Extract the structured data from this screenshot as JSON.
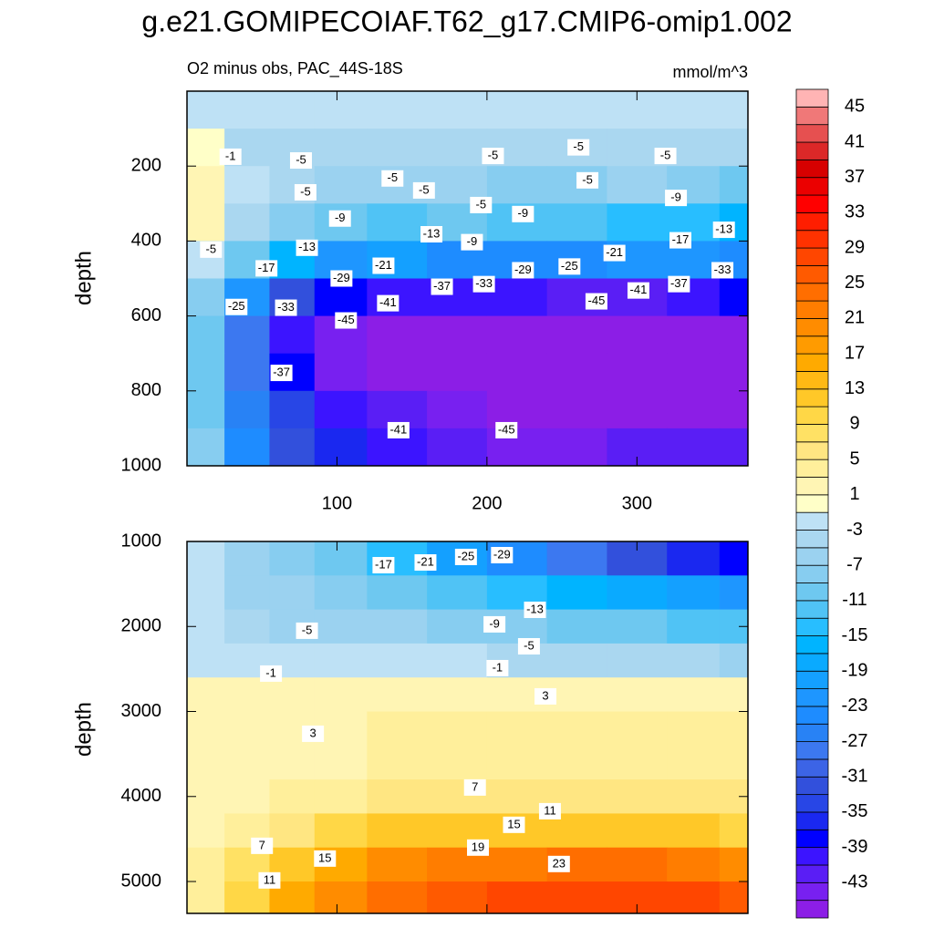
{
  "chart_data": [
    {
      "type": "contour",
      "title": "g.e21.GOMIPECOIAF.T62_g17.CMIP6-omip1.002",
      "subtitle": "O2 minus obs, PAC_44S-18S",
      "units": "mmol/m^3",
      "ylabel": "depth",
      "xlim": [
        0,
        374
      ],
      "xticks": [
        100,
        200,
        300
      ],
      "show_xtick_labels": true,
      "ylim": [
        0,
        1000
      ],
      "yticks": [
        200,
        400,
        600,
        800,
        1000
      ],
      "y_reversed": true,
      "x": [
        10,
        40,
        70,
        100,
        140,
        180,
        220,
        260,
        300,
        340,
        370
      ],
      "y": [
        50,
        150,
        250,
        350,
        450,
        550,
        650,
        750,
        850,
        950
      ],
      "z": [
        [
          -2,
          -3,
          -3,
          -3,
          -3,
          -3,
          -3,
          -3,
          -3,
          -3,
          -3
        ],
        [
          0,
          -4,
          -5,
          -4,
          -5,
          -4,
          -5,
          -5,
          -4,
          -5,
          -4
        ],
        [
          1,
          -3,
          -4,
          -7,
          -6,
          -7,
          -8,
          -8,
          -7,
          -9,
          -10
        ],
        [
          1,
          -5,
          -9,
          -11,
          -13,
          -11,
          -12,
          -13,
          -14,
          -15,
          -16
        ],
        [
          -3,
          -10,
          -17,
          -22,
          -21,
          -24,
          -25,
          -24,
          -22,
          -22,
          -25
        ],
        [
          -8,
          -22,
          -32,
          -38,
          -41,
          -40,
          -40,
          -43,
          -42,
          -40,
          -38
        ],
        [
          -10,
          -28,
          -40,
          -45,
          -47,
          -47,
          -47,
          -47,
          -47,
          -47,
          -47
        ],
        [
          -10,
          -28,
          -38,
          -44,
          -46,
          -47,
          -47,
          -47,
          -47,
          -47,
          -47
        ],
        [
          -10,
          -26,
          -34,
          -40,
          -43,
          -44,
          -46,
          -46,
          -46,
          -46,
          -46
        ],
        [
          -9,
          -24,
          -32,
          -37,
          -40,
          -42,
          -44,
          -45,
          -43,
          -42,
          -43
        ]
      ],
      "contour_labels": [
        {
          "x": 29,
          "y": 175,
          "value": -1
        },
        {
          "x": 76,
          "y": 185,
          "value": -5
        },
        {
          "x": 79,
          "y": 270,
          "value": -5
        },
        {
          "x": 137,
          "y": 233,
          "value": -5
        },
        {
          "x": 158,
          "y": 265,
          "value": -5
        },
        {
          "x": 204,
          "y": 173,
          "value": -5
        },
        {
          "x": 261,
          "y": 150,
          "value": -5
        },
        {
          "x": 267,
          "y": 238,
          "value": -5
        },
        {
          "x": 319,
          "y": 173,
          "value": -5
        },
        {
          "x": 196,
          "y": 304,
          "value": -5
        },
        {
          "x": 102,
          "y": 340,
          "value": -9
        },
        {
          "x": 190,
          "y": 403,
          "value": -9
        },
        {
          "x": 224,
          "y": 328,
          "value": -9
        },
        {
          "x": 326,
          "y": 285,
          "value": -9
        },
        {
          "x": 163,
          "y": 382,
          "value": -13
        },
        {
          "x": 80,
          "y": 418,
          "value": -13
        },
        {
          "x": 358,
          "y": 370,
          "value": -13
        },
        {
          "x": 16,
          "y": 423,
          "value": -5
        },
        {
          "x": 53,
          "y": 473,
          "value": -17
        },
        {
          "x": 329,
          "y": 398,
          "value": -17
        },
        {
          "x": 131,
          "y": 466,
          "value": -21
        },
        {
          "x": 285,
          "y": 432,
          "value": -21
        },
        {
          "x": 103,
          "y": 500,
          "value": -29
        },
        {
          "x": 224,
          "y": 478,
          "value": -29
        },
        {
          "x": 255,
          "y": 468,
          "value": -25
        },
        {
          "x": 170,
          "y": 522,
          "value": -37
        },
        {
          "x": 198,
          "y": 515,
          "value": -33
        },
        {
          "x": 357,
          "y": 478,
          "value": -33
        },
        {
          "x": 328,
          "y": 515,
          "value": -37
        },
        {
          "x": 301,
          "y": 532,
          "value": -41
        },
        {
          "x": 134,
          "y": 566,
          "value": -41
        },
        {
          "x": 273,
          "y": 561,
          "value": -45
        },
        {
          "x": 33,
          "y": 576,
          "value": -25
        },
        {
          "x": 66,
          "y": 578,
          "value": -33
        },
        {
          "x": 106,
          "y": 612,
          "value": -45
        },
        {
          "x": 63,
          "y": 752,
          "value": -37
        },
        {
          "x": 141,
          "y": 905,
          "value": -41
        },
        {
          "x": 213,
          "y": 905,
          "value": -45
        }
      ],
      "colorbar": {
        "levels": [
          -45,
          -43,
          -41,
          -39,
          -37,
          -35,
          -33,
          -31,
          -29,
          -27,
          -25,
          -23,
          -21,
          -19,
          -17,
          -15,
          -13,
          -11,
          -9,
          -7,
          -5,
          -3,
          -1,
          1,
          3,
          5,
          7,
          9,
          11,
          13,
          15,
          17,
          19,
          21,
          23,
          25,
          27,
          29,
          31,
          33,
          35,
          37,
          39,
          41,
          43,
          45
        ],
        "ticks": [
          -43,
          -39,
          -35,
          -31,
          -27,
          -23,
          -19,
          -15,
          -11,
          -7,
          -3,
          1,
          5,
          9,
          13,
          17,
          21,
          25,
          29,
          33,
          37,
          41,
          45
        ],
        "colors": [
          "#8c1ee6",
          "#7820f0",
          "#5a1ef5",
          "#3c14ff",
          "#0000ff",
          "#1a28f0",
          "#2846e6",
          "#3250dc",
          "#3c64e6",
          "#3c78f0",
          "#2882f5",
          "#1e8cff",
          "#1e96ff",
          "#14a0ff",
          "#0aaaff",
          "#00b4ff",
          "#28beff",
          "#50c3f5",
          "#6ec8f0",
          "#87cdf0",
          "#9bd2f0",
          "#aad7f0",
          "#bee1f5",
          "#ffffc8",
          "#fff5b4",
          "#ffef9b",
          "#ffe682",
          "#ffe164",
          "#ffd746",
          "#ffc828",
          "#ffb914",
          "#ffaa00",
          "#ff9b00",
          "#ff8c00",
          "#ff7d00",
          "#ff6e00",
          "#ff5a00",
          "#ff4600",
          "#ff3200",
          "#ff1e00",
          "#ff0000",
          "#eb0000",
          "#d70000",
          "#dc2828",
          "#e65050",
          "#f07878",
          "#ffb4b4"
        ]
      }
    },
    {
      "type": "contour",
      "ylabel": "depth",
      "xlim": [
        0,
        374
      ],
      "xticks": [
        100,
        200,
        300
      ],
      "show_xtick_labels": false,
      "ylim": [
        1000,
        5375
      ],
      "yticks": [
        1000,
        2000,
        3000,
        4000,
        5000
      ],
      "y_reversed": true,
      "x": [
        10,
        40,
        70,
        100,
        140,
        180,
        220,
        260,
        300,
        340,
        370
      ],
      "y": [
        1200,
        1600,
        2000,
        2400,
        2800,
        3200,
        3600,
        4000,
        4400,
        4800,
        5200
      ],
      "z": [
        [
          -3,
          -6,
          -8,
          -11,
          -15,
          -20,
          -25,
          -28,
          -32,
          -36,
          -38
        ],
        [
          -3,
          -6,
          -7,
          -8,
          -10,
          -12,
          -14,
          -16,
          -18,
          -20,
          -22
        ],
        [
          -3,
          -5,
          -6,
          -6,
          -7,
          -8,
          -9,
          -10,
          -11,
          -12,
          -13
        ],
        [
          -2,
          -3,
          -3,
          -3,
          -3,
          -3,
          -4,
          -4,
          -5,
          -5,
          -6
        ],
        [
          1,
          1,
          1,
          1,
          1,
          1,
          1,
          1,
          1,
          1,
          1
        ],
        [
          1,
          2,
          2,
          2,
          3,
          3,
          3,
          3,
          3,
          3,
          3
        ],
        [
          1,
          2,
          2,
          2,
          3,
          4,
          4,
          4,
          4,
          3,
          3
        ],
        [
          1,
          2,
          3,
          4,
          5,
          6,
          6,
          6,
          6,
          5,
          5
        ],
        [
          2,
          4,
          6,
          9,
          11,
          11,
          12,
          12,
          12,
          11,
          10
        ],
        [
          3,
          7,
          12,
          16,
          19,
          21,
          22,
          23,
          23,
          22,
          20
        ],
        [
          4,
          10,
          16,
          20,
          24,
          26,
          27,
          28,
          28,
          27,
          26
        ]
      ],
      "contour_labels": [
        {
          "x": 131,
          "y": 1279,
          "value": -17
        },
        {
          "x": 159,
          "y": 1247,
          "value": -21
        },
        {
          "x": 186,
          "y": 1182,
          "value": -25
        },
        {
          "x": 210,
          "y": 1161,
          "value": -29
        },
        {
          "x": 232,
          "y": 1804,
          "value": -13
        },
        {
          "x": 205,
          "y": 1975,
          "value": -9
        },
        {
          "x": 80,
          "y": 2050,
          "value": -5
        },
        {
          "x": 228,
          "y": 2233,
          "value": -5
        },
        {
          "x": 56,
          "y": 2554,
          "value": -1
        },
        {
          "x": 207,
          "y": 2490,
          "value": -1
        },
        {
          "x": 239,
          "y": 2822,
          "value": 3
        },
        {
          "x": 84,
          "y": 3262,
          "value": 3
        },
        {
          "x": 192,
          "y": 3894,
          "value": 7
        },
        {
          "x": 242,
          "y": 4173,
          "value": 11
        },
        {
          "x": 218,
          "y": 4333,
          "value": 15
        },
        {
          "x": 194,
          "y": 4601,
          "value": 19
        },
        {
          "x": 248,
          "y": 4794,
          "value": 23
        },
        {
          "x": 50,
          "y": 4580,
          "value": 7
        },
        {
          "x": 92,
          "y": 4730,
          "value": 15
        },
        {
          "x": 55,
          "y": 4987,
          "value": 11
        }
      ]
    }
  ]
}
